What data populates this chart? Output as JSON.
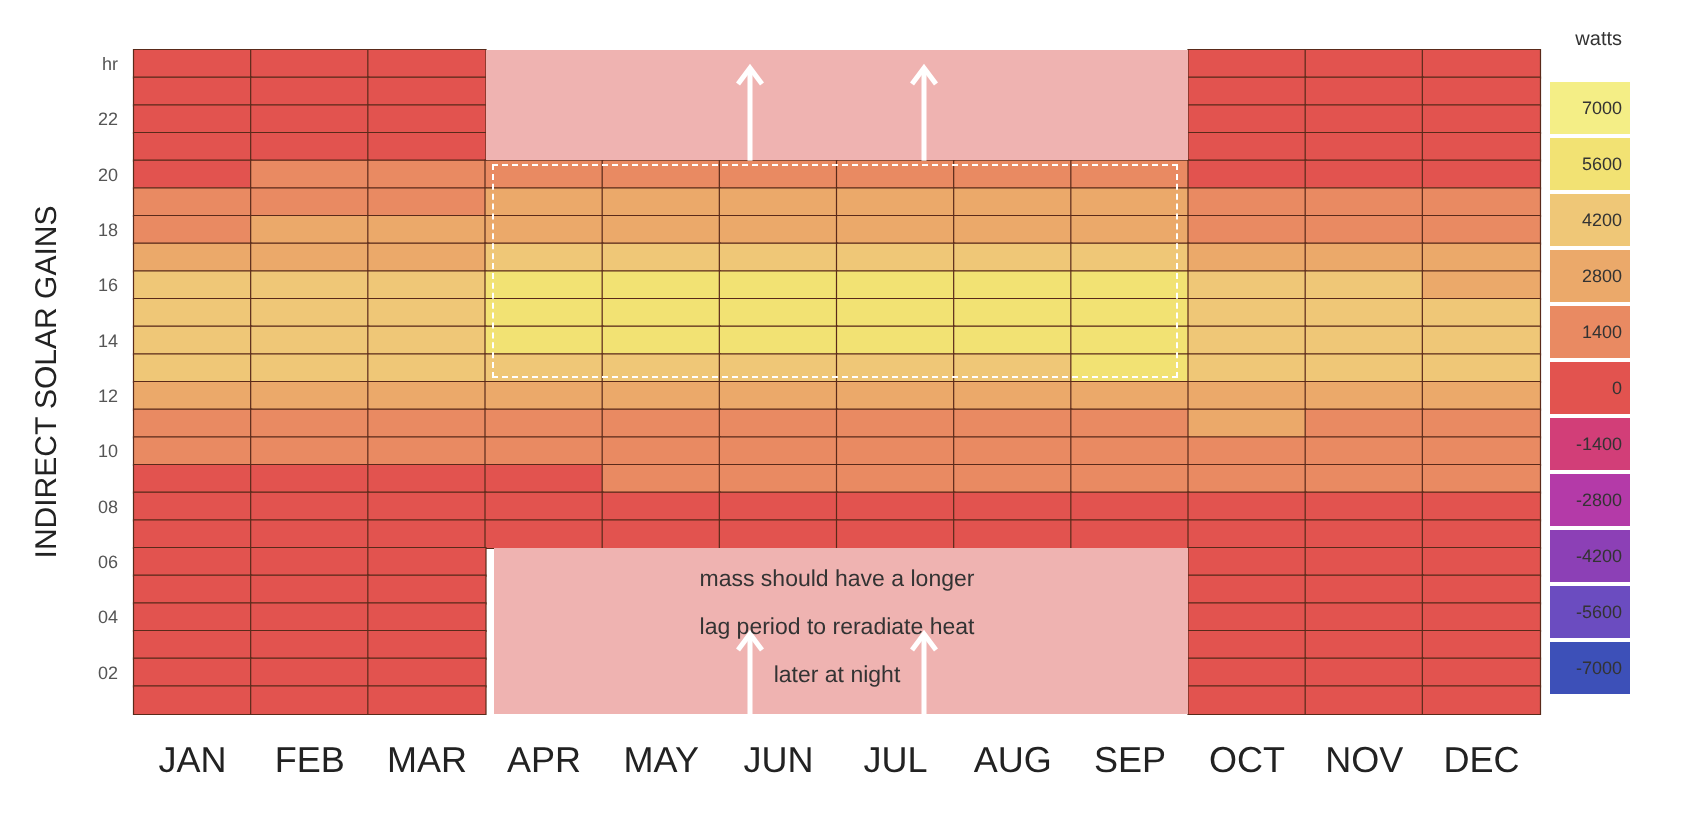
{
  "chart_data": {
    "type": "heatmap",
    "ylabel": "INDIRECT SOLAR GAINS",
    "clabel": "watts",
    "categories": [
      "JAN",
      "FEB",
      "MAR",
      "APR",
      "MAY",
      "JUN",
      "JUL",
      "AUG",
      "SEP",
      "OCT",
      "NOV",
      "DEC"
    ],
    "y_categories": [
      "hr",
      null,
      "22",
      null,
      "20",
      null,
      "18",
      null,
      "16",
      null,
      "14",
      null,
      "12",
      null,
      "10",
      null,
      "08",
      null,
      "06",
      null,
      "04",
      null,
      "02",
      null
    ],
    "cells": [
      [
        200,
        200,
        300,
        null,
        null,
        null,
        null,
        null,
        null,
        200,
        200,
        200
      ],
      [
        300,
        300,
        300,
        null,
        null,
        null,
        null,
        null,
        null,
        200,
        200,
        200
      ],
      [
        300,
        300,
        400,
        null,
        null,
        null,
        null,
        null,
        null,
        300,
        200,
        200
      ],
      [
        400,
        400,
        500,
        null,
        null,
        null,
        null,
        null,
        null,
        300,
        300,
        300
      ],
      [
        700,
        900,
        1200,
        1400,
        1400,
        1400,
        1400,
        1400,
        1400,
        600,
        500,
        500
      ],
      [
        1300,
        1600,
        1800,
        2300,
        2300,
        2300,
        2300,
        2300,
        2300,
        1000,
        900,
        800
      ],
      [
        2100,
        2400,
        2600,
        3200,
        3200,
        3200,
        3200,
        3200,
        3200,
        1800,
        1600,
        1500
      ],
      [
        3000,
        3200,
        3500,
        4200,
        4200,
        4300,
        4300,
        4300,
        4200,
        2800,
        2700,
        2500
      ],
      [
        3900,
        4100,
        4300,
        5000,
        5200,
        5300,
        5300,
        5200,
        5100,
        3700,
        3600,
        3400
      ],
      [
        4300,
        4500,
        4700,
        5500,
        5700,
        5900,
        5900,
        5800,
        5700,
        4300,
        4200,
        4100
      ],
      [
        4300,
        4500,
        4600,
        5300,
        5600,
        5800,
        5800,
        5800,
        5900,
        4600,
        4400,
        4300
      ],
      [
        3800,
        3900,
        4000,
        4500,
        4700,
        4900,
        4900,
        4900,
        5200,
        4300,
        4100,
        4000
      ],
      [
        2900,
        2900,
        3000,
        2800,
        2900,
        3000,
        3000,
        3000,
        3400,
        3500,
        3300,
        3200
      ],
      [
        1700,
        1700,
        1700,
        1600,
        1700,
        1700,
        1700,
        1700,
        1900,
        2200,
        2000,
        1900
      ],
      [
        900,
        900,
        900,
        900,
        1000,
        1000,
        1000,
        1000,
        1100,
        1200,
        1100,
        1000
      ],
      [
        700,
        700,
        700,
        700,
        800,
        800,
        800,
        800,
        800,
        900,
        800,
        800
      ],
      [
        500,
        500,
        500,
        600,
        600,
        600,
        600,
        600,
        600,
        600,
        600,
        600
      ],
      [
        400,
        400,
        400,
        500,
        500,
        500,
        500,
        500,
        500,
        500,
        500,
        500
      ],
      [
        300,
        300,
        300,
        null,
        null,
        null,
        null,
        null,
        null,
        400,
        400,
        400
      ],
      [
        300,
        300,
        300,
        null,
        null,
        null,
        null,
        null,
        null,
        300,
        300,
        300
      ],
      [
        200,
        200,
        200,
        null,
        null,
        null,
        null,
        null,
        null,
        300,
        300,
        300
      ],
      [
        200,
        200,
        200,
        null,
        null,
        null,
        null,
        null,
        null,
        200,
        200,
        200
      ],
      [
        200,
        200,
        200,
        null,
        null,
        null,
        null,
        null,
        null,
        200,
        200,
        200
      ],
      [
        200,
        200,
        200,
        null,
        null,
        null,
        null,
        null,
        null,
        200,
        200,
        200
      ]
    ],
    "cticks": [
      7000,
      5600,
      4200,
      2800,
      1400,
      0,
      -1400,
      -2800,
      -4200,
      -5600,
      -7000
    ],
    "annotations": [
      "mass should have a longer lag period to reradiate heat later at night"
    ]
  }
}
